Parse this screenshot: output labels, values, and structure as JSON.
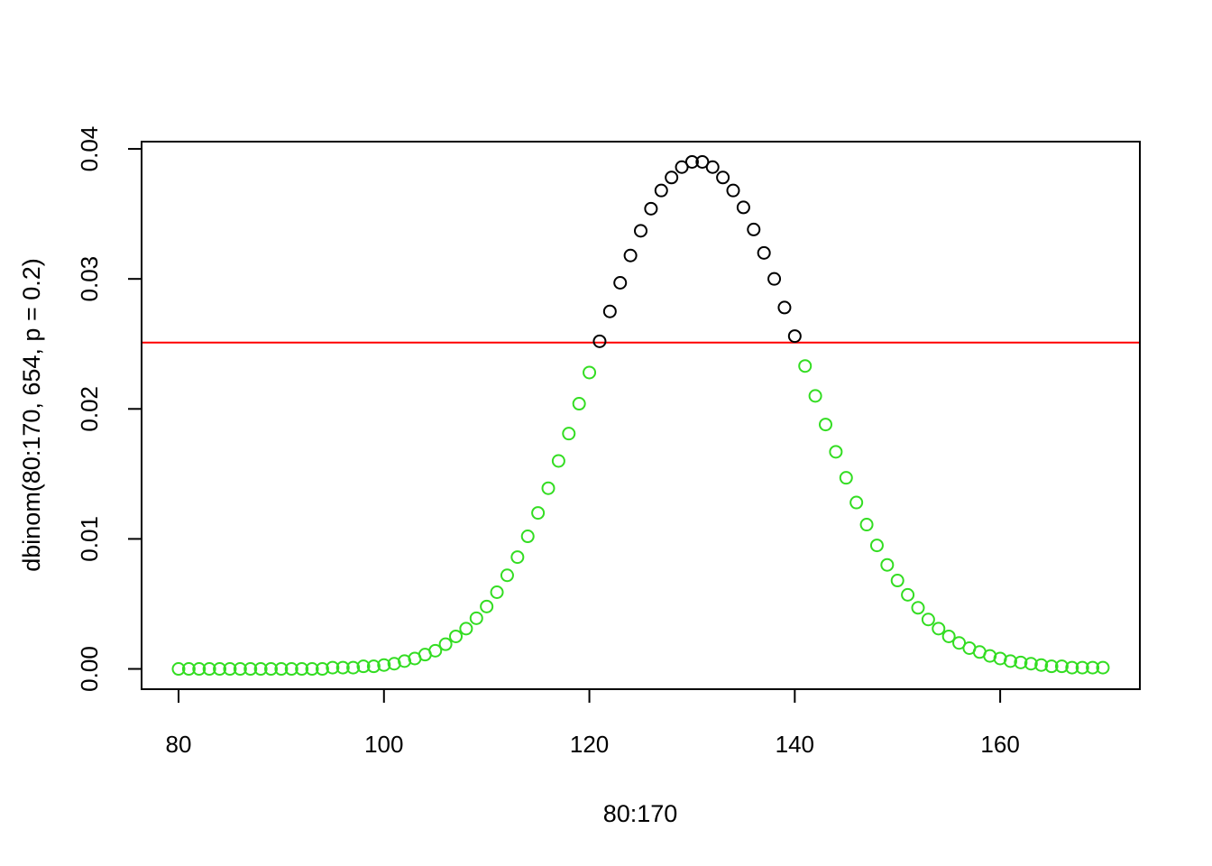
{
  "chart_data": {
    "type": "scatter",
    "title": "",
    "xlabel": "80:170",
    "ylabel": "dbinom(80:170, 654, p = 0.2)",
    "xlim": [
      76.4,
      173.6
    ],
    "ylim": [
      -0.00156,
      0.04056
    ],
    "x_ticks": [
      "80",
      "100",
      "120",
      "140",
      "160"
    ],
    "y_ticks": [
      "0.00",
      "0.01",
      "0.02",
      "0.03",
      "0.04"
    ],
    "grid": false,
    "legend": "none",
    "marker": "open-circle",
    "threshold_line": {
      "y": 0.0251,
      "color": "#ff0000"
    },
    "colors": {
      "above_threshold": "#000000",
      "below_threshold": "#33dd22"
    },
    "x": [
      80,
      81,
      82,
      83,
      84,
      85,
      86,
      87,
      88,
      89,
      90,
      91,
      92,
      93,
      94,
      95,
      96,
      97,
      98,
      99,
      100,
      101,
      102,
      103,
      104,
      105,
      106,
      107,
      108,
      109,
      110,
      111,
      112,
      113,
      114,
      115,
      116,
      117,
      118,
      119,
      120,
      121,
      122,
      123,
      124,
      125,
      126,
      127,
      128,
      129,
      130,
      131,
      132,
      133,
      134,
      135,
      136,
      137,
      138,
      139,
      140,
      141,
      142,
      143,
      144,
      145,
      146,
      147,
      148,
      149,
      150,
      151,
      152,
      153,
      154,
      155,
      156,
      157,
      158,
      159,
      160,
      161,
      162,
      163,
      164,
      165,
      166,
      167,
      168,
      169,
      170
    ],
    "y": [
      0.0,
      0.0,
      0.0,
      0.0,
      0.0,
      0.0,
      0.0,
      0.0,
      0.0,
      0.0,
      0.0,
      0.0,
      0.0,
      0.0,
      0.0,
      0.0001,
      0.0001,
      0.0001,
      0.0002,
      0.0002,
      0.0003,
      0.0004,
      0.0006,
      0.0008,
      0.0011,
      0.0014,
      0.0019,
      0.0025,
      0.0031,
      0.0039,
      0.0048,
      0.0059,
      0.0072,
      0.0086,
      0.0102,
      0.012,
      0.0139,
      0.016,
      0.0181,
      0.0204,
      0.0228,
      0.0252,
      0.0275,
      0.0297,
      0.0318,
      0.0337,
      0.0354,
      0.0368,
      0.0378,
      0.0386,
      0.039,
      0.039,
      0.0386,
      0.0378,
      0.0368,
      0.0355,
      0.0338,
      0.032,
      0.03,
      0.0278,
      0.0256,
      0.0233,
      0.021,
      0.0188,
      0.0167,
      0.0147,
      0.0128,
      0.0111,
      0.0095,
      0.008,
      0.0068,
      0.0057,
      0.0047,
      0.0038,
      0.0031,
      0.0025,
      0.002,
      0.0016,
      0.0013,
      0.001,
      0.0008,
      0.0006,
      0.0005,
      0.0004,
      0.0003,
      0.0002,
      0.0002,
      0.0001,
      0.0001,
      0.0001,
      0.0001
    ]
  }
}
